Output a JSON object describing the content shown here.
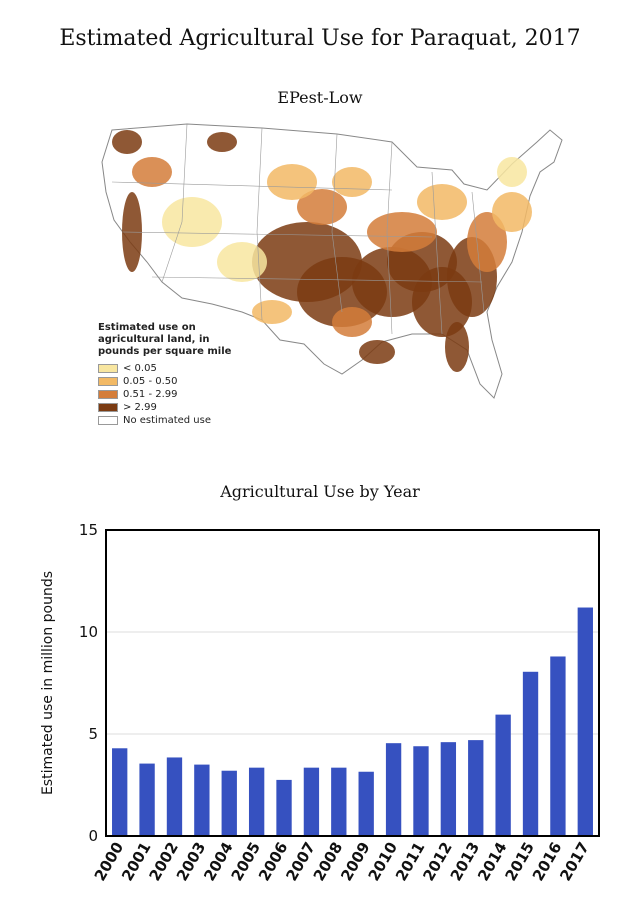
{
  "page": {
    "title": "Estimated Agricultural Use for Paraquat, 2017",
    "map_subtitle": "EPest-Low",
    "chart_title": "Agricultural Use by Year"
  },
  "legend": {
    "title": "Estimated use on agricultural land, in pounds per square mile",
    "items": [
      {
        "label": "< 0.05",
        "color": "#f8e6a0"
      },
      {
        "label": "0.05 - 0.50",
        "color": "#f2b965"
      },
      {
        "label": "0.51 - 2.99",
        "color": "#d47d3a"
      },
      {
        "label": "> 2.99",
        "color": "#7b3b12"
      },
      {
        "label": "No estimated use",
        "color": "#ffffff"
      }
    ]
  },
  "chart_data": {
    "type": "bar",
    "title": "Agricultural Use by Year",
    "xlabel": "",
    "ylabel": "Estimated use in million pounds",
    "categories": [
      "2000",
      "2001",
      "2002",
      "2003",
      "2004",
      "2005",
      "2006",
      "2007",
      "2008",
      "2009",
      "2010",
      "2011",
      "2012",
      "2013",
      "2014",
      "2015",
      "2016",
      "2017"
    ],
    "values": [
      4.3,
      3.55,
      3.85,
      3.5,
      3.2,
      3.35,
      2.75,
      3.35,
      3.35,
      3.15,
      4.55,
      4.4,
      4.6,
      4.7,
      5.95,
      8.05,
      8.8,
      11.2
    ],
    "ylim": [
      0,
      15
    ],
    "yticks": [
      0,
      5,
      10,
      15
    ],
    "grid": true,
    "bar_color": "#3651c0"
  }
}
